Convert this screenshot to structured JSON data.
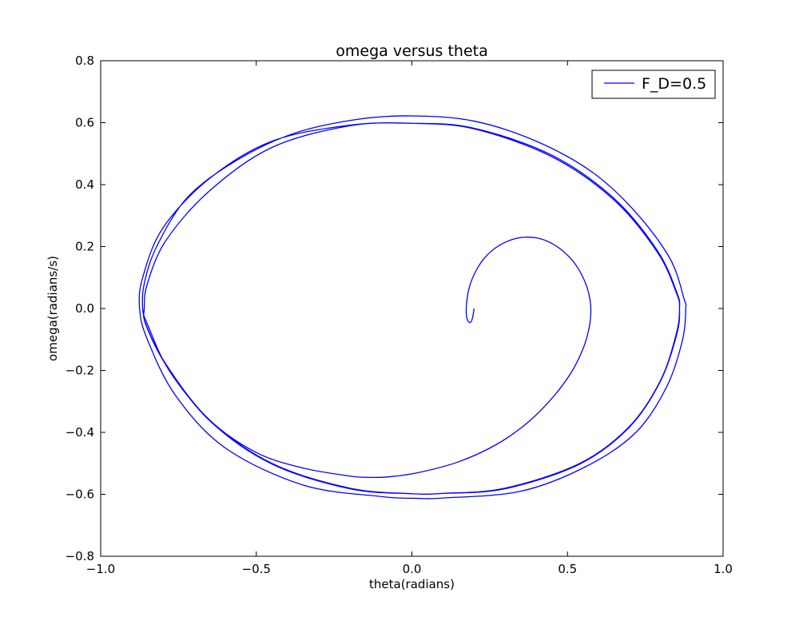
{
  "chart_data": {
    "type": "line",
    "title": "omega versus theta",
    "xlabel": "theta(radians)",
    "ylabel": "omega(radians/s)",
    "xlim": [
      -1.0,
      1.0
    ],
    "ylim": [
      -0.8,
      0.8
    ],
    "xticks": [
      -1.0,
      -0.5,
      0.0,
      0.5,
      1.0
    ],
    "xtick_labels": [
      "−1.0",
      "−0.5",
      "0.0",
      "0.5",
      "1.0"
    ],
    "yticks": [
      -0.8,
      -0.6,
      -0.4,
      -0.2,
      0.0,
      0.2,
      0.4,
      0.6,
      0.8
    ],
    "ytick_labels": [
      "−0.8",
      "−0.6",
      "−0.4",
      "−0.2",
      "0.0",
      "0.2",
      "0.4",
      "0.6",
      "0.8"
    ],
    "grid": false,
    "legend_position": "top-right",
    "series": [
      {
        "name": "F_D=0.5",
        "color": "#0000ff",
        "points": [
          [
            0.2,
            0.0
          ],
          [
            0.195,
            -0.03
          ],
          [
            0.188,
            -0.045
          ],
          [
            0.18,
            -0.04
          ],
          [
            0.175,
            -0.02
          ],
          [
            0.176,
            0.02
          ],
          [
            0.185,
            0.07
          ],
          [
            0.205,
            0.12
          ],
          [
            0.235,
            0.165
          ],
          [
            0.275,
            0.2
          ],
          [
            0.32,
            0.222
          ],
          [
            0.36,
            0.23
          ],
          [
            0.4,
            0.228
          ],
          [
            0.44,
            0.215
          ],
          [
            0.48,
            0.19
          ],
          [
            0.52,
            0.15
          ],
          [
            0.55,
            0.1
          ],
          [
            0.568,
            0.05
          ],
          [
            0.575,
            0.0
          ],
          [
            0.57,
            -0.06
          ],
          [
            0.55,
            -0.13
          ],
          [
            0.51,
            -0.21
          ],
          [
            0.45,
            -0.29
          ],
          [
            0.37,
            -0.37
          ],
          [
            0.27,
            -0.44
          ],
          [
            0.15,
            -0.495
          ],
          [
            0.02,
            -0.53
          ],
          [
            -0.08,
            -0.544
          ],
          [
            -0.15,
            -0.545
          ],
          [
            -0.2,
            -0.541
          ],
          [
            -0.35,
            -0.515
          ],
          [
            -0.5,
            -0.465
          ],
          [
            -0.65,
            -0.36
          ],
          [
            -0.78,
            -0.2
          ],
          [
            -0.85,
            -0.05
          ],
          [
            -0.865,
            0.0
          ],
          [
            -0.86,
            0.08
          ],
          [
            -0.82,
            0.2
          ],
          [
            -0.72,
            0.36
          ],
          [
            -0.56,
            0.48
          ],
          [
            -0.38,
            0.565
          ],
          [
            -0.18,
            0.61
          ],
          [
            0.0,
            0.622
          ],
          [
            0.2,
            0.605
          ],
          [
            0.4,
            0.54
          ],
          [
            0.58,
            0.44
          ],
          [
            0.72,
            0.31
          ],
          [
            0.83,
            0.16
          ],
          [
            0.875,
            0.03
          ],
          [
            0.88,
            0.0
          ],
          [
            0.87,
            -0.1
          ],
          [
            0.82,
            -0.25
          ],
          [
            0.72,
            -0.4
          ],
          [
            0.56,
            -0.51
          ],
          [
            0.35,
            -0.59
          ],
          [
            0.1,
            -0.612
          ],
          [
            0.02,
            -0.613
          ],
          [
            -0.1,
            -0.607
          ],
          [
            -0.35,
            -0.57
          ],
          [
            -0.6,
            -0.45
          ],
          [
            -0.76,
            -0.28
          ],
          [
            -0.85,
            -0.1
          ],
          [
            -0.875,
            0.0
          ],
          [
            -0.865,
            0.1
          ],
          [
            -0.8,
            0.26
          ],
          [
            -0.65,
            0.42
          ],
          [
            -0.45,
            0.54
          ],
          [
            -0.2,
            0.592
          ],
          [
            0.0,
            0.598
          ],
          [
            0.2,
            0.58
          ],
          [
            0.45,
            0.49
          ],
          [
            0.65,
            0.35
          ],
          [
            0.79,
            0.18
          ],
          [
            0.85,
            0.05
          ],
          [
            0.86,
            0.0
          ],
          [
            0.85,
            -0.08
          ],
          [
            0.8,
            -0.23
          ],
          [
            0.7,
            -0.38
          ],
          [
            0.54,
            -0.5
          ],
          [
            0.3,
            -0.58
          ],
          [
            0.1,
            -0.597
          ],
          [
            0.0,
            -0.598
          ],
          [
            -0.2,
            -0.58
          ],
          [
            -0.45,
            -0.5
          ],
          [
            -0.65,
            -0.36
          ],
          [
            -0.79,
            -0.18
          ],
          [
            -0.855,
            -0.05
          ],
          [
            -0.86,
            0.0
          ],
          [
            -0.85,
            0.08
          ],
          [
            -0.79,
            0.22
          ],
          [
            -0.65,
            0.38
          ],
          [
            -0.45,
            0.52
          ],
          [
            -0.2,
            0.59
          ],
          [
            0.0,
            0.598
          ],
          [
            0.2,
            0.582
          ],
          [
            0.45,
            0.495
          ],
          [
            0.65,
            0.355
          ],
          [
            0.79,
            0.185
          ],
          [
            0.852,
            0.05
          ],
          [
            0.86,
            0.0
          ],
          [
            0.852,
            -0.08
          ],
          [
            0.8,
            -0.232
          ],
          [
            0.7,
            -0.382
          ],
          [
            0.54,
            -0.502
          ],
          [
            0.3,
            -0.582
          ],
          [
            0.1,
            -0.597
          ],
          [
            0.0,
            -0.598
          ],
          [
            -0.2,
            -0.582
          ],
          [
            -0.45,
            -0.502
          ],
          [
            -0.65,
            -0.362
          ],
          [
            -0.79,
            -0.182
          ],
          [
            -0.855,
            -0.052
          ],
          [
            -0.86,
            0.0
          ]
        ]
      }
    ]
  }
}
